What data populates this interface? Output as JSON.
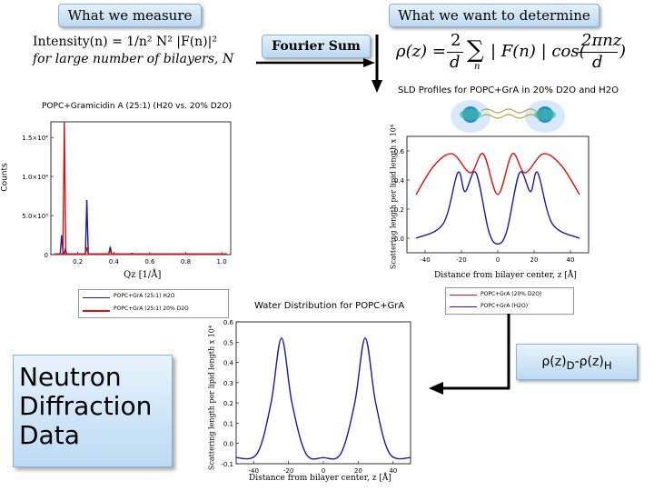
{
  "header": {
    "left_title": "What we measure",
    "right_title": "What we want to determine"
  },
  "intensity_formula": "Intensity(n) = 1/n² N² |F(n)|²",
  "bilayers_note": "for large number of bilayers, N",
  "fourier_sum_label": "Fourier Sum",
  "rho_formula": {
    "lhs": "ρ(z) =",
    "frac1_num": "2",
    "frac1_den": "d",
    "sum": "∑",
    "sum_index": "n",
    "middle": "| F(n) | cos(",
    "frac2_num": "2πnz",
    "frac2_den": "d",
    "close": ")"
  },
  "diffraction_chart": {
    "title": "POPC+Gramicidin A (25:1) (H20 vs. 20% D2O)",
    "ylabel": "Counts",
    "xlabel": "Qz [1/Å]",
    "y_ticks": [
      "1.5×10⁴",
      "1.0×10⁴",
      "5.0×10³",
      "0"
    ],
    "x_ticks": [
      "0.2",
      "0.4",
      "0.6",
      "0.8",
      "1.0"
    ],
    "legend": [
      "POPC+GrA (25:1) H2O",
      "POPC+GrA (25:1) 20% D2O"
    ]
  },
  "sld_chart": {
    "title": "SLD Profiles for POPC+GrA in 20% D2O and H2O",
    "ylabel": "Scattering length per lipid length x 10⁴",
    "xlabel": "Distance from bilayer center, z [Å]",
    "y_ticks": [
      "0.6",
      "0.4",
      "0.2",
      "0.0"
    ],
    "x_ticks": [
      "-40",
      "-20",
      "0",
      "20",
      "40"
    ],
    "legend": [
      "POPC+GrA (20% D2O)",
      "POPC+GrA (H2O)"
    ]
  },
  "water_chart": {
    "title": "Water Distribution for POPC+GrA",
    "ylabel": "Scattering length per lipid length x 10⁴",
    "xlabel": "Distance from bilayer center, z [Å]",
    "y_ticks": [
      "0.6",
      "0.5",
      "0.4",
      "0.3",
      "0.2",
      "0.1",
      "0.0",
      "-0.1"
    ],
    "x_ticks": [
      "-40",
      "-20",
      "0",
      "20",
      "40"
    ]
  },
  "neutron_box": {
    "line1": "Neutron",
    "line2": "Diffraction",
    "line3": "Data"
  },
  "difference_label": {
    "a": "ρ(z)",
    "sub_a": "D",
    "dash": "-",
    "b": "ρ(z)",
    "sub_b": "H"
  },
  "chart_data": [
    {
      "type": "line",
      "title": "POPC+Gramicidin A (25:1) (H20 vs. 20% D2O)",
      "xlabel": "Qz [1/Å]",
      "ylabel": "Counts",
      "xlim": [
        0.05,
        1.05
      ],
      "ylim": [
        0,
        17000
      ],
      "series": [
        {
          "name": "POPC+GrA (25:1) H2O",
          "color": "#1a1aa8",
          "points": [
            [
              0.11,
              2500
            ],
            [
              0.13,
              700
            ],
            [
              0.25,
              7000
            ],
            [
              0.38,
              1000
            ],
            [
              0.5,
              150
            ],
            [
              0.63,
              100
            ]
          ]
        },
        {
          "name": "POPC+GrA (25:1) 20% D2O",
          "color": "#dd1111",
          "points": [
            [
              0.125,
              17000
            ],
            [
              0.25,
              900
            ],
            [
              0.38,
              500
            ]
          ]
        }
      ]
    },
    {
      "type": "line",
      "title": "SLD Profiles for POPC+GrA in 20% D2O and H2O",
      "xlabel": "Distance from bilayer center, z [Å]",
      "ylabel": "Scattering length per lipid length x 10⁴",
      "xlim": [
        -50,
        50
      ],
      "ylim": [
        -0.1,
        0.7
      ],
      "series": [
        {
          "name": "POPC+GrA (20% D2O)",
          "color": "#dd1111",
          "points": [
            [
              -45,
              0.3
            ],
            [
              -35,
              0.5
            ],
            [
              -25,
              0.58
            ],
            [
              -15,
              0.45
            ],
            [
              -8,
              0.58
            ],
            [
              0,
              0.3
            ],
            [
              8,
              0.58
            ],
            [
              15,
              0.45
            ],
            [
              25,
              0.58
            ],
            [
              35,
              0.5
            ],
            [
              45,
              0.3
            ]
          ]
        },
        {
          "name": "POPC+GrA (H2O)",
          "color": "#1a1aa8",
          "points": [
            [
              -45,
              0.0
            ],
            [
              -30,
              0.1
            ],
            [
              -22,
              0.45
            ],
            [
              -18,
              0.32
            ],
            [
              -12,
              0.45
            ],
            [
              -5,
              0.05
            ],
            [
              0,
              -0.04
            ],
            [
              5,
              0.05
            ],
            [
              12,
              0.45
            ],
            [
              18,
              0.32
            ],
            [
              22,
              0.45
            ],
            [
              30,
              0.1
            ],
            [
              45,
              0.0
            ]
          ]
        }
      ]
    },
    {
      "type": "line",
      "title": "Water Distribution for POPC+GrA",
      "xlabel": "Distance from bilayer center, z [Å]",
      "ylabel": "Scattering length per lipid length x 10⁴",
      "xlim": [
        -50,
        50
      ],
      "ylim": [
        -0.1,
        0.6
      ],
      "series": [
        {
          "name": "",
          "color": "#1a1aa8",
          "points": [
            [
              -50,
              -0.07
            ],
            [
              -38,
              -0.05
            ],
            [
              -30,
              0.2
            ],
            [
              -24,
              0.52
            ],
            [
              -18,
              0.2
            ],
            [
              -10,
              -0.05
            ],
            [
              0,
              -0.07
            ],
            [
              10,
              -0.05
            ],
            [
              18,
              0.2
            ],
            [
              24,
              0.52
            ],
            [
              30,
              0.2
            ],
            [
              38,
              -0.05
            ],
            [
              50,
              -0.07
            ]
          ]
        }
      ]
    }
  ]
}
